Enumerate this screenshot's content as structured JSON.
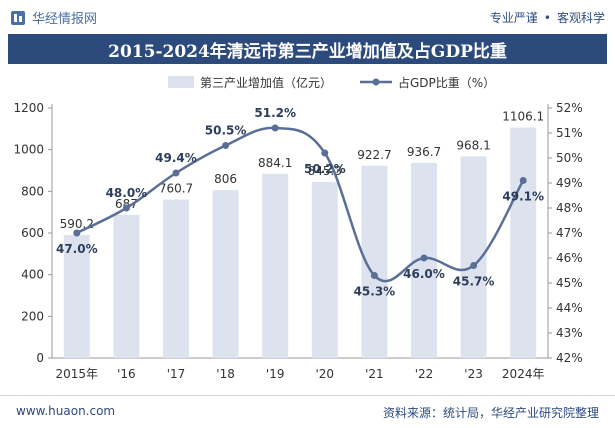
{
  "header": {
    "brand_name": "华经情报网",
    "tagline_left": "专业严谨",
    "tagline_right": "客观科学"
  },
  "title": "2015-2024年清远市第三产业增加值及占GDP比重",
  "footer": {
    "website": "www.huaon.com",
    "source": "资料来源：统计局，华经产业研究院整理"
  },
  "colors": {
    "bar": "#dde3ee",
    "line": "#5a6f96",
    "title_bg": "#2c4a7c",
    "axis_text": "#333333"
  },
  "chart_data": {
    "type": "bar",
    "categories": [
      "2015年",
      "'16",
      "'17",
      "'18",
      "'19",
      "'20",
      "'21",
      "'22",
      "'23",
      "2024年"
    ],
    "series": [
      {
        "name": "第三产业增加值（亿元）",
        "type": "bar",
        "axis": "left",
        "values": [
          590.2,
          687,
          760.7,
          806,
          884.1,
          845.3,
          922.7,
          936.7,
          968.1,
          1106.1
        ],
        "labels": [
          "590.2",
          "687",
          "760.7",
          "806",
          "884.1",
          "845.3",
          "922.7",
          "936.7",
          "968.1",
          "1106.1"
        ]
      },
      {
        "name": "占GDP比重（%）",
        "type": "line",
        "axis": "right",
        "values": [
          47.0,
          48.0,
          49.4,
          50.5,
          51.2,
          50.2,
          45.3,
          46.0,
          45.7,
          49.1
        ],
        "labels": [
          "47.0%",
          "48.0%",
          "49.4%",
          "50.5%",
          "51.2%",
          "50.2%",
          "45.3%",
          "46.0%",
          "45.7%",
          "49.1%"
        ]
      }
    ],
    "y_left": {
      "min": 0,
      "max": 1200,
      "ticks": [
        "0",
        "200",
        "400",
        "600",
        "800",
        "1000",
        "1200"
      ]
    },
    "y_right": {
      "min": 42,
      "max": 52,
      "ticks": [
        "42%",
        "43%",
        "44%",
        "45%",
        "46%",
        "47%",
        "48%",
        "49%",
        "50%",
        "51%",
        "52%"
      ]
    },
    "legend": "top-center"
  }
}
